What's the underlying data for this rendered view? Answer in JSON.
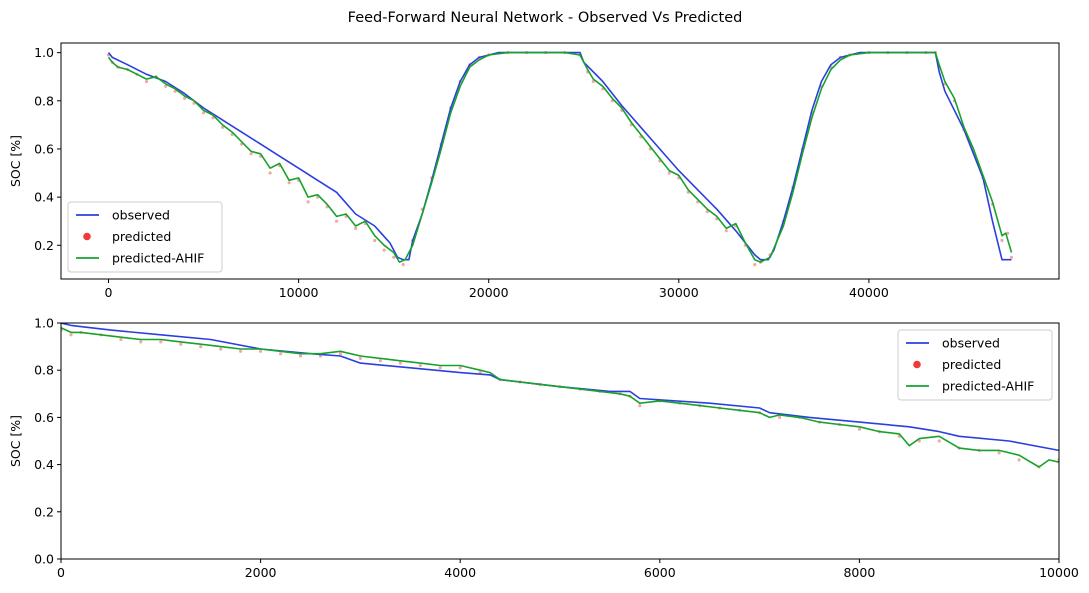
{
  "figure": {
    "title": "Feed-Forward Neural Network - Observed Vs Predicted"
  },
  "colors": {
    "observed": "#2b3fe0",
    "predicted": "#ee3a3a",
    "predicted_ahif": "#17a32b"
  },
  "chart_data": [
    {
      "type": "line",
      "ylabel": "SOC [%]",
      "xlabel": "",
      "xlim": [
        -2500,
        50000
      ],
      "ylim": [
        0.06,
        1.04
      ],
      "x_ticks": [
        0,
        10000,
        20000,
        30000,
        40000
      ],
      "x_tick_labels": [
        "0",
        "10000",
        "20000",
        "30000",
        "40000"
      ],
      "y_ticks": [
        0.2,
        0.4,
        0.6,
        0.8,
        1.0
      ],
      "y_tick_labels": [
        "0.2",
        "0.4",
        "0.6",
        "0.8",
        "1.0"
      ],
      "legend": {
        "position": "lower-left",
        "entries": [
          "observed",
          "predicted",
          "predicted-AHIF"
        ]
      },
      "grid": false,
      "series": [
        {
          "name": "observed",
          "style": "line",
          "x": [
            0,
            200,
            1000,
            2000,
            3000,
            4000,
            5000,
            6000,
            7000,
            8000,
            9000,
            10000,
            11000,
            12000,
            13000,
            14000,
            14800,
            15200,
            15500,
            15800,
            16000,
            16500,
            17000,
            17500,
            18000,
            18500,
            19000,
            19500,
            20000,
            20500,
            21000,
            22000,
            24000,
            24800,
            25000,
            26000,
            27000,
            28000,
            29000,
            30000,
            31000,
            32000,
            33000,
            33600,
            34000,
            34300,
            34700,
            35000,
            35500,
            36000,
            36500,
            37000,
            37500,
            38000,
            38500,
            39000,
            39500,
            40000,
            40500,
            42000,
            43500,
            43700,
            44000,
            45000,
            46000,
            46500,
            47000,
            47500
          ],
          "y": [
            1.0,
            0.98,
            0.95,
            0.91,
            0.88,
            0.83,
            0.77,
            0.72,
            0.67,
            0.62,
            0.57,
            0.52,
            0.47,
            0.42,
            0.33,
            0.28,
            0.21,
            0.15,
            0.14,
            0.14,
            0.22,
            0.33,
            0.47,
            0.62,
            0.77,
            0.88,
            0.95,
            0.98,
            0.99,
            1.0,
            1.0,
            1.0,
            1.0,
            1.0,
            0.96,
            0.88,
            0.78,
            0.69,
            0.6,
            0.51,
            0.43,
            0.35,
            0.26,
            0.2,
            0.16,
            0.14,
            0.14,
            0.18,
            0.3,
            0.44,
            0.6,
            0.76,
            0.88,
            0.95,
            0.98,
            0.99,
            1.0,
            1.0,
            1.0,
            1.0,
            1.0,
            0.92,
            0.84,
            0.68,
            0.48,
            0.3,
            0.14,
            0.14
          ]
        },
        {
          "name": "predicted",
          "style": "scatter",
          "x": [
            0,
            200,
            500,
            1000,
            1500,
            2000,
            2500,
            3000,
            3500,
            4000,
            4500,
            5000,
            5500,
            6000,
            6500,
            7000,
            7500,
            8000,
            8500,
            9000,
            9500,
            10000,
            10500,
            11000,
            11500,
            12000,
            12500,
            13000,
            13500,
            14000,
            14500,
            15000,
            15500,
            16000,
            16500,
            17000,
            17500,
            18000,
            18500,
            19000,
            19500,
            20000,
            21000,
            22000,
            23000,
            24000,
            24800,
            25200,
            25500,
            26000,
            26500,
            27000,
            27500,
            28000,
            28500,
            29000,
            29500,
            30000,
            30500,
            31000,
            31500,
            32000,
            32500,
            33000,
            33500,
            34000,
            34300,
            34800,
            35500,
            36000,
            36500,
            37000,
            37500,
            38000,
            38500,
            39000,
            40000,
            41000,
            42000,
            43000,
            43500,
            43700,
            44000,
            44500,
            45000,
            45500,
            46000,
            46500,
            47000,
            47300,
            47500
          ],
          "y": [
            0.99,
            0.96,
            0.94,
            0.93,
            0.91,
            0.88,
            0.9,
            0.86,
            0.84,
            0.81,
            0.79,
            0.75,
            0.73,
            0.69,
            0.66,
            0.62,
            0.58,
            0.57,
            0.5,
            0.53,
            0.46,
            0.47,
            0.38,
            0.4,
            0.36,
            0.3,
            0.32,
            0.27,
            0.29,
            0.22,
            0.18,
            0.15,
            0.12,
            0.22,
            0.35,
            0.48,
            0.62,
            0.77,
            0.88,
            0.95,
            0.98,
            0.99,
            1.0,
            1.0,
            1.0,
            1.0,
            0.99,
            0.92,
            0.88,
            0.85,
            0.8,
            0.76,
            0.7,
            0.65,
            0.6,
            0.55,
            0.5,
            0.48,
            0.42,
            0.38,
            0.34,
            0.31,
            0.26,
            0.28,
            0.2,
            0.12,
            0.13,
            0.16,
            0.3,
            0.44,
            0.6,
            0.75,
            0.86,
            0.94,
            0.98,
            0.99,
            1.0,
            1.0,
            1.0,
            1.0,
            1.0,
            0.94,
            0.87,
            0.8,
            0.68,
            0.59,
            0.48,
            0.37,
            0.22,
            0.25,
            0.15
          ]
        },
        {
          "name": "predicted-AHIF",
          "style": "line",
          "x": [
            0,
            200,
            500,
            1000,
            1500,
            2000,
            2500,
            3000,
            3500,
            4000,
            4500,
            5000,
            5500,
            6000,
            6500,
            7000,
            7500,
            8000,
            8500,
            9000,
            9500,
            10000,
            10500,
            11000,
            11500,
            12000,
            12500,
            13000,
            13500,
            14000,
            14500,
            15000,
            15300,
            15600,
            16000,
            16500,
            17000,
            17500,
            18000,
            18500,
            19000,
            19500,
            20000,
            21000,
            22000,
            23000,
            24000,
            24800,
            25200,
            25500,
            26000,
            26500,
            27000,
            27500,
            28000,
            28500,
            29000,
            29500,
            30000,
            30500,
            31000,
            31500,
            32000,
            32500,
            33000,
            33500,
            34000,
            34300,
            34800,
            35500,
            36000,
            36500,
            37000,
            37500,
            38000,
            38500,
            39000,
            40000,
            41000,
            42000,
            43000,
            43500,
            43700,
            44000,
            44500,
            45000,
            45500,
            46000,
            46500,
            47000,
            47200,
            47500
          ],
          "y": [
            0.98,
            0.96,
            0.94,
            0.93,
            0.91,
            0.89,
            0.9,
            0.87,
            0.85,
            0.82,
            0.8,
            0.76,
            0.74,
            0.7,
            0.67,
            0.63,
            0.59,
            0.58,
            0.52,
            0.54,
            0.47,
            0.48,
            0.4,
            0.41,
            0.37,
            0.32,
            0.33,
            0.28,
            0.3,
            0.24,
            0.2,
            0.17,
            0.13,
            0.14,
            0.2,
            0.33,
            0.46,
            0.6,
            0.75,
            0.86,
            0.94,
            0.97,
            0.99,
            1.0,
            1.0,
            1.0,
            1.0,
            0.99,
            0.93,
            0.89,
            0.86,
            0.81,
            0.77,
            0.71,
            0.66,
            0.61,
            0.56,
            0.51,
            0.49,
            0.43,
            0.39,
            0.35,
            0.32,
            0.27,
            0.29,
            0.21,
            0.14,
            0.13,
            0.15,
            0.28,
            0.42,
            0.58,
            0.73,
            0.85,
            0.93,
            0.97,
            0.99,
            1.0,
            1.0,
            1.0,
            1.0,
            1.0,
            0.95,
            0.88,
            0.81,
            0.69,
            0.6,
            0.49,
            0.38,
            0.24,
            0.25,
            0.17
          ]
        }
      ]
    },
    {
      "type": "line",
      "ylabel": "SOC [%]",
      "xlabel": "",
      "xlim": [
        0,
        10000
      ],
      "ylim": [
        0.0,
        1.0
      ],
      "x_ticks": [
        0,
        2000,
        4000,
        6000,
        8000,
        10000
      ],
      "x_tick_labels": [
        "0",
        "2000",
        "4000",
        "6000",
        "8000",
        "10000"
      ],
      "y_ticks": [
        0.0,
        0.2,
        0.4,
        0.6,
        0.8,
        1.0
      ],
      "y_tick_labels": [
        "0.0",
        "0.2",
        "0.4",
        "0.6",
        "0.8",
        "1.0"
      ],
      "legend": {
        "position": "upper-right",
        "entries": [
          "observed",
          "predicted",
          "predicted-AHIF"
        ]
      },
      "grid": false,
      "series": [
        {
          "name": "observed",
          "style": "line",
          "x": [
            0,
            100,
            500,
            1000,
            1500,
            2000,
            2500,
            2800,
            3000,
            3500,
            4000,
            4300,
            4400,
            5000,
            5500,
            5700,
            5800,
            6500,
            7000,
            7100,
            7500,
            8000,
            8500,
            8800,
            9000,
            9500,
            10000
          ],
          "y": [
            1.0,
            0.99,
            0.97,
            0.95,
            0.93,
            0.89,
            0.87,
            0.86,
            0.83,
            0.81,
            0.79,
            0.78,
            0.76,
            0.73,
            0.71,
            0.71,
            0.68,
            0.66,
            0.64,
            0.62,
            0.6,
            0.58,
            0.56,
            0.54,
            0.52,
            0.5,
            0.46
          ]
        },
        {
          "name": "predicted",
          "style": "scatter",
          "x": [
            0,
            100,
            200,
            400,
            600,
            800,
            1000,
            1200,
            1400,
            1600,
            1800,
            2000,
            2200,
            2400,
            2600,
            2800,
            3000,
            3200,
            3400,
            3600,
            3800,
            4000,
            4200,
            4400,
            4600,
            4800,
            5000,
            5200,
            5400,
            5600,
            5700,
            5800,
            6000,
            6200,
            6400,
            6600,
            6800,
            7000,
            7200,
            7400,
            7600,
            7800,
            8000,
            8200,
            8400,
            8600,
            8800,
            9000,
            9200,
            9400,
            9600,
            9800,
            10000
          ],
          "y": [
            0.97,
            0.95,
            0.96,
            0.95,
            0.93,
            0.92,
            0.92,
            0.91,
            0.9,
            0.89,
            0.88,
            0.88,
            0.87,
            0.86,
            0.86,
            0.87,
            0.85,
            0.84,
            0.83,
            0.82,
            0.81,
            0.81,
            0.79,
            0.76,
            0.75,
            0.74,
            0.73,
            0.72,
            0.71,
            0.7,
            0.69,
            0.65,
            0.67,
            0.66,
            0.65,
            0.64,
            0.63,
            0.62,
            0.6,
            0.6,
            0.58,
            0.57,
            0.55,
            0.54,
            0.52,
            0.5,
            0.5,
            0.47,
            0.46,
            0.45,
            0.42,
            0.39,
            0.42
          ]
        },
        {
          "name": "predicted-AHIF",
          "style": "line",
          "x": [
            0,
            100,
            200,
            400,
            600,
            800,
            1000,
            1200,
            1400,
            1600,
            1800,
            2000,
            2200,
            2400,
            2600,
            2800,
            3000,
            3200,
            3400,
            3600,
            3800,
            4000,
            4200,
            4300,
            4400,
            4600,
            4800,
            5000,
            5200,
            5400,
            5600,
            5700,
            5800,
            6000,
            6200,
            6400,
            6600,
            6800,
            7000,
            7100,
            7200,
            7400,
            7600,
            7800,
            8000,
            8200,
            8400,
            8500,
            8600,
            8800,
            9000,
            9200,
            9400,
            9600,
            9800,
            9900,
            10000
          ],
          "y": [
            0.98,
            0.96,
            0.96,
            0.95,
            0.94,
            0.93,
            0.93,
            0.92,
            0.91,
            0.9,
            0.89,
            0.89,
            0.88,
            0.87,
            0.87,
            0.88,
            0.86,
            0.85,
            0.84,
            0.83,
            0.82,
            0.82,
            0.8,
            0.79,
            0.76,
            0.75,
            0.74,
            0.73,
            0.72,
            0.71,
            0.7,
            0.69,
            0.66,
            0.67,
            0.66,
            0.65,
            0.64,
            0.63,
            0.62,
            0.6,
            0.61,
            0.6,
            0.58,
            0.57,
            0.56,
            0.54,
            0.53,
            0.48,
            0.51,
            0.52,
            0.47,
            0.46,
            0.46,
            0.44,
            0.39,
            0.42,
            0.41
          ]
        }
      ]
    }
  ]
}
